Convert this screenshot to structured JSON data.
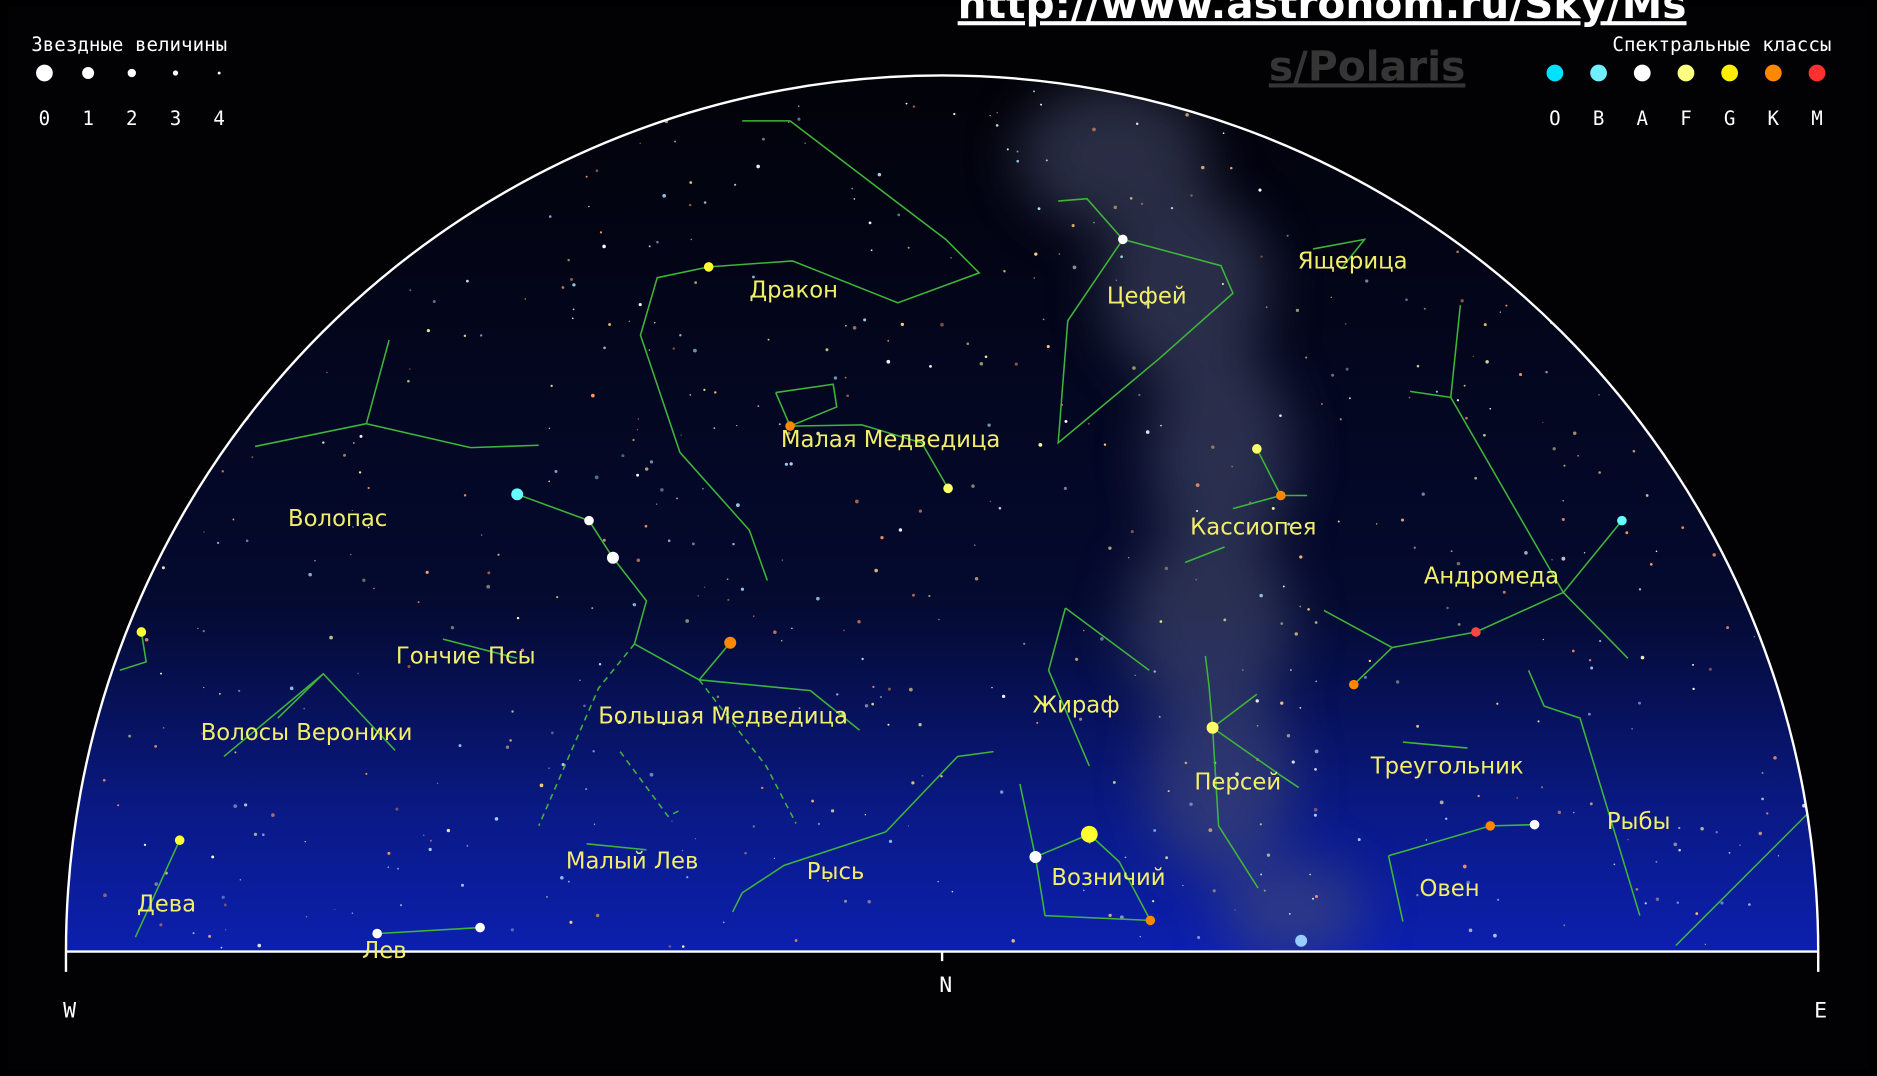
{
  "url": [
    "http://www.astronom.ru/Sky/Ms",
    "s/Polaris"
  ],
  "legend_magnitude": {
    "title": "Звездные величины",
    "labels": [
      "0",
      "1",
      "2",
      "3",
      "4"
    ]
  },
  "legend_spectral": {
    "title": "Спектральные классы",
    "labels": [
      "O",
      "B",
      "A",
      "F",
      "G",
      "K",
      "M"
    ]
  },
  "constellations": [
    "Дракон",
    "Цефей",
    "Ящерица",
    "Малая Медведица",
    "Волопас",
    "Кассиопея",
    "Андромеда",
    "Гончие Псы",
    "Жираф",
    "Большая Медведица",
    "Волосы Вероники",
    "Треугольник",
    "Персей",
    "Рыбы",
    "Малый Лев",
    "Рысь",
    "Возничий",
    "Овен",
    "Дева",
    "Лев"
  ],
  "compass": {
    "west": "W",
    "north": "N",
    "east": "E"
  }
}
